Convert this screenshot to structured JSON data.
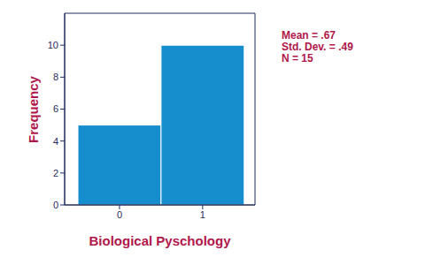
{
  "chart_data": {
    "type": "histogram",
    "bins": [
      -0.5,
      0.5,
      1.5
    ],
    "values": [
      5,
      10
    ],
    "color": "#168dcc",
    "xlabel": "Biological Pyschology",
    "ylabel": "Frequency",
    "xlim": [
      -0.66,
      1.63
    ],
    "xticks": [
      0,
      1
    ],
    "ylim": [
      0,
      12
    ],
    "yticks": [
      0,
      2,
      4,
      6,
      8,
      10
    ],
    "annotations": [
      "Mean = .67",
      "Std. Dev. = .49",
      "N = 15"
    ],
    "grid": false
  }
}
